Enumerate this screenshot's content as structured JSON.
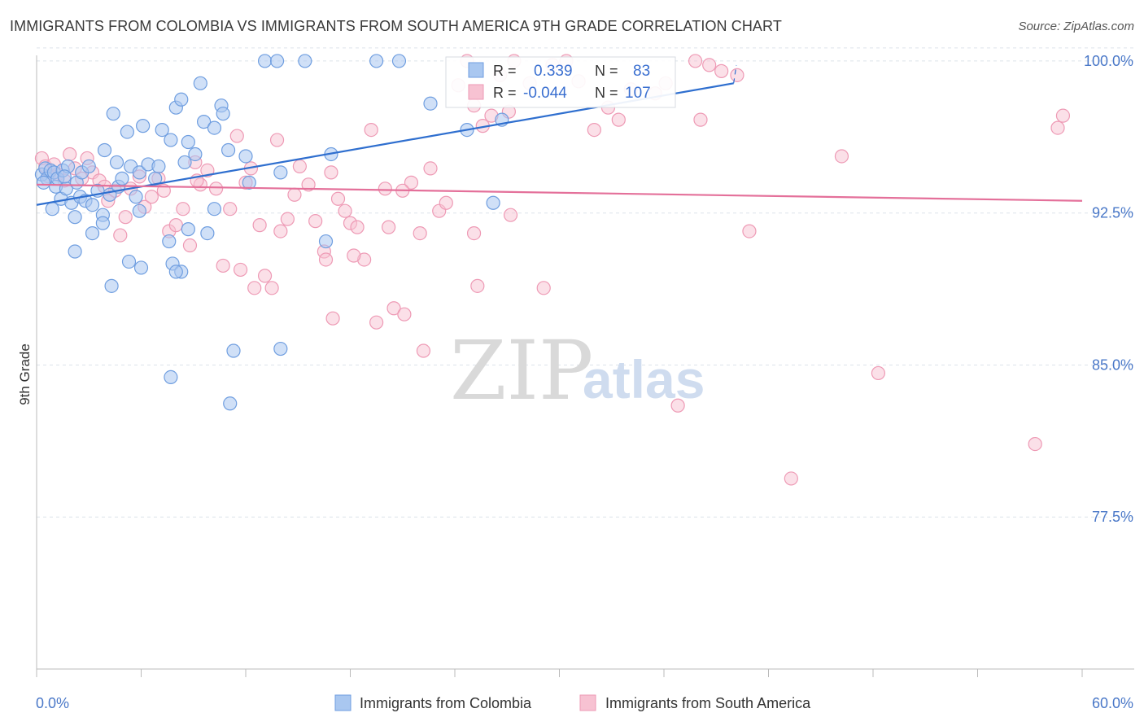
{
  "title": "IMMIGRANTS FROM COLOMBIA VS IMMIGRANTS FROM SOUTH AMERICA 9TH GRADE CORRELATION CHART",
  "source": "Source: ZipAtlas.com",
  "watermark": {
    "part1": "ZIP",
    "part2": "atlas"
  },
  "colors": {
    "series1_fill": "#a9c7f0",
    "series1_stroke": "#6f9ee0",
    "series1_line": "#2f6fcf",
    "series2_fill": "#f7c2d2",
    "series2_stroke": "#ee9ab5",
    "series2_line": "#e4709a",
    "axis_text": "#4a78c8",
    "grid": "#dde3ea"
  },
  "stats": {
    "r_label": "R =",
    "n_label": "N =",
    "rows": [
      {
        "r": "0.339",
        "n": "83"
      },
      {
        "r": "-0.044",
        "n": "107"
      }
    ]
  },
  "chart_data": {
    "type": "scatter",
    "xlabel": "",
    "ylabel": "9th Grade",
    "xlim": [
      0,
      60
    ],
    "ylim": [
      70.0,
      100.8
    ],
    "x_tick_labels": [
      "0.0%",
      "60.0%"
    ],
    "y_ticks": [
      100.0,
      92.5,
      85.0,
      77.5
    ],
    "y_tick_labels": [
      "100.0%",
      "92.5%",
      "85.0%",
      "77.5%"
    ],
    "grid": true,
    "legend": "bottom-center",
    "series": [
      {
        "name": "Immigrants from Colombia",
        "trend": {
          "x": [
            0,
            40
          ],
          "y": [
            92.9,
            98.9
          ],
          "dashed_x": [
            40,
            40.4
          ],
          "dashed_y": [
            98.9,
            99.9
          ]
        },
        "points": [
          [
            0.3,
            94.4
          ],
          [
            0.5,
            94.7
          ],
          [
            0.6,
            94.2
          ],
          [
            0.8,
            94.6
          ],
          [
            0.9,
            92.7
          ],
          [
            1.0,
            94.5
          ],
          [
            1.1,
            93.8
          ],
          [
            1.2,
            94.2
          ],
          [
            1.4,
            93.2
          ],
          [
            1.5,
            94.6
          ],
          [
            1.7,
            93.7
          ],
          [
            1.8,
            94.8
          ],
          [
            2.0,
            93.0
          ],
          [
            2.2,
            92.3
          ],
          [
            2.3,
            94.0
          ],
          [
            2.5,
            93.3
          ],
          [
            2.6,
            94.5
          ],
          [
            2.8,
            93.1
          ],
          [
            3.0,
            94.8
          ],
          [
            3.2,
            92.9
          ],
          [
            3.5,
            93.6
          ],
          [
            3.8,
            92.4
          ],
          [
            3.9,
            95.6
          ],
          [
            4.2,
            93.4
          ],
          [
            4.4,
            97.4
          ],
          [
            4.6,
            95.0
          ],
          [
            4.7,
            93.8
          ],
          [
            4.9,
            94.2
          ],
          [
            5.2,
            96.5
          ],
          [
            5.4,
            94.8
          ],
          [
            5.7,
            93.3
          ],
          [
            5.9,
            94.5
          ],
          [
            6.1,
            96.8
          ],
          [
            6.4,
            94.9
          ],
          [
            6.8,
            94.2
          ],
          [
            7.0,
            94.8
          ],
          [
            7.2,
            96.6
          ],
          [
            7.7,
            96.1
          ],
          [
            8.0,
            97.7
          ],
          [
            8.3,
            98.1
          ],
          [
            8.5,
            95.0
          ],
          [
            8.7,
            96.0
          ],
          [
            9.1,
            95.4
          ],
          [
            9.4,
            98.9
          ],
          [
            9.6,
            97.0
          ],
          [
            10.2,
            92.7
          ],
          [
            10.6,
            97.8
          ],
          [
            11.0,
            95.6
          ],
          [
            12.2,
            94.0
          ],
          [
            14.0,
            94.5
          ],
          [
            3.2,
            91.5
          ],
          [
            3.8,
            92.0
          ],
          [
            4.3,
            88.9
          ],
          [
            5.3,
            90.1
          ],
          [
            7.6,
            91.1
          ],
          [
            8.7,
            91.7
          ],
          [
            7.8,
            90.0
          ],
          [
            8.3,
            89.6
          ],
          [
            2.2,
            90.6
          ],
          [
            7.7,
            84.4
          ],
          [
            11.3,
            85.7
          ],
          [
            11.1,
            83.1
          ],
          [
            14.0,
            85.8
          ],
          [
            16.6,
            91.1
          ],
          [
            13.1,
            100.0
          ],
          [
            13.8,
            100.0
          ],
          [
            15.4,
            100.0
          ],
          [
            19.5,
            100.0
          ],
          [
            20.8,
            100.0
          ],
          [
            22.6,
            97.9
          ],
          [
            26.2,
            93.0
          ],
          [
            16.9,
            95.4
          ],
          [
            24.7,
            96.6
          ],
          [
            26.7,
            97.1
          ],
          [
            8.0,
            89.6
          ],
          [
            6.0,
            89.8
          ],
          [
            9.8,
            91.5
          ],
          [
            10.7,
            97.4
          ],
          [
            12.0,
            95.3
          ],
          [
            5.9,
            92.6
          ],
          [
            10.2,
            96.7
          ],
          [
            1.6,
            94.3
          ],
          [
            0.4,
            94.0
          ]
        ]
      },
      {
        "name": "Immigrants from South America",
        "trend": {
          "x": [
            0,
            60
          ],
          "y": [
            93.9,
            93.1
          ]
        },
        "points": [
          [
            0.3,
            95.2
          ],
          [
            0.5,
            94.8
          ],
          [
            0.7,
            94.3
          ],
          [
            1.0,
            94.9
          ],
          [
            1.2,
            94.4
          ],
          [
            1.6,
            94.1
          ],
          [
            1.9,
            95.4
          ],
          [
            2.2,
            94.7
          ],
          [
            2.6,
            94.2
          ],
          [
            2.9,
            95.2
          ],
          [
            3.2,
            94.5
          ],
          [
            3.6,
            94.1
          ],
          [
            3.9,
            93.8
          ],
          [
            4.1,
            93.1
          ],
          [
            4.5,
            93.6
          ],
          [
            4.8,
            91.4
          ],
          [
            5.1,
            92.3
          ],
          [
            5.4,
            93.7
          ],
          [
            5.9,
            94.3
          ],
          [
            6.2,
            92.8
          ],
          [
            6.6,
            93.3
          ],
          [
            7.0,
            94.2
          ],
          [
            7.3,
            93.6
          ],
          [
            7.6,
            91.6
          ],
          [
            8.0,
            91.9
          ],
          [
            8.4,
            92.7
          ],
          [
            8.8,
            90.9
          ],
          [
            9.1,
            95.0
          ],
          [
            9.4,
            93.9
          ],
          [
            9.8,
            94.6
          ],
          [
            10.3,
            93.7
          ],
          [
            10.7,
            89.9
          ],
          [
            11.1,
            92.7
          ],
          [
            11.5,
            96.3
          ],
          [
            12.0,
            94.0
          ],
          [
            12.3,
            94.7
          ],
          [
            12.8,
            91.9
          ],
          [
            13.1,
            89.4
          ],
          [
            13.5,
            88.8
          ],
          [
            14.0,
            91.6
          ],
          [
            14.4,
            92.2
          ],
          [
            14.8,
            93.4
          ],
          [
            15.1,
            94.8
          ],
          [
            15.6,
            93.9
          ],
          [
            16.0,
            92.1
          ],
          [
            16.5,
            90.6
          ],
          [
            16.9,
            94.5
          ],
          [
            17.3,
            93.2
          ],
          [
            17.7,
            92.6
          ],
          [
            18.0,
            92.0
          ],
          [
            18.4,
            91.8
          ],
          [
            18.8,
            90.2
          ],
          [
            19.2,
            96.6
          ],
          [
            19.5,
            87.1
          ],
          [
            20.0,
            93.7
          ],
          [
            20.5,
            87.8
          ],
          [
            21.1,
            87.5
          ],
          [
            21.5,
            94.0
          ],
          [
            22.0,
            91.5
          ],
          [
            22.6,
            94.7
          ],
          [
            23.1,
            92.6
          ],
          [
            23.5,
            93.0
          ],
          [
            24.2,
            98.8
          ],
          [
            24.7,
            100.0
          ],
          [
            25.1,
            97.8
          ],
          [
            25.6,
            96.8
          ],
          [
            26.1,
            97.3
          ],
          [
            26.6,
            99.3
          ],
          [
            27.1,
            97.5
          ],
          [
            27.4,
            100.0
          ],
          [
            28.3,
            98.9
          ],
          [
            29.1,
            88.8
          ],
          [
            29.6,
            99.8
          ],
          [
            30.4,
            100.0
          ],
          [
            31.1,
            99.0
          ],
          [
            32.0,
            96.6
          ],
          [
            32.8,
            97.7
          ],
          [
            33.4,
            97.1
          ],
          [
            34.1,
            98.6
          ],
          [
            35.5,
            98.4
          ],
          [
            36.1,
            98.9
          ],
          [
            36.8,
            83.0
          ],
          [
            38.6,
            99.8
          ],
          [
            39.3,
            99.5
          ],
          [
            37.8,
            100.0
          ],
          [
            38.1,
            97.1
          ],
          [
            40.2,
            99.3
          ],
          [
            40.9,
            91.6
          ],
          [
            43.3,
            79.4
          ],
          [
            46.2,
            95.3
          ],
          [
            48.3,
            84.6
          ],
          [
            57.3,
            81.1
          ],
          [
            58.6,
            96.7
          ],
          [
            58.9,
            97.3
          ],
          [
            11.7,
            89.7
          ],
          [
            12.5,
            88.8
          ],
          [
            16.6,
            90.2
          ],
          [
            17.0,
            87.3
          ],
          [
            22.2,
            85.7
          ],
          [
            25.1,
            91.5
          ],
          [
            25.3,
            88.9
          ],
          [
            27.2,
            92.4
          ],
          [
            18.2,
            90.4
          ],
          [
            21.0,
            93.6
          ],
          [
            13.8,
            96.1
          ],
          [
            9.2,
            94.1
          ],
          [
            20.2,
            91.8
          ]
        ]
      }
    ]
  }
}
